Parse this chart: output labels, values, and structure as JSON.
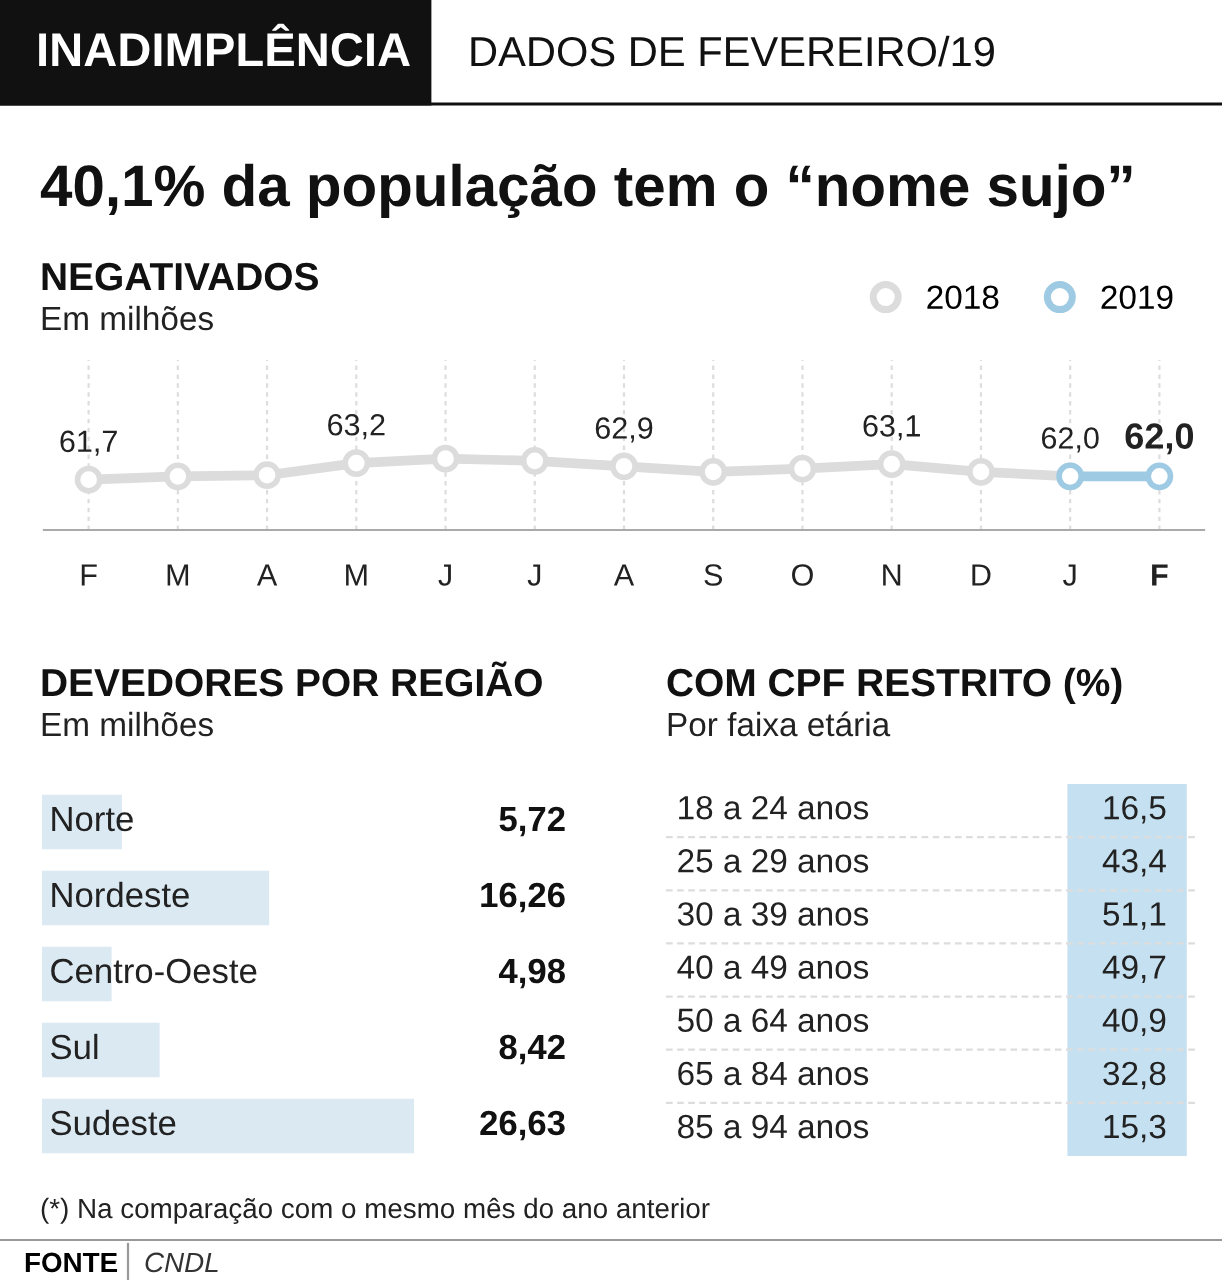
{
  "chart_data": [
    {
      "type": "other",
      "title": "40,1% da população tem o “nome sujo”",
      "annotations": [
        "INADIMPLÊNCIA",
        "DADOS DE FEVEREIRO/19"
      ]
    },
    {
      "type": "line",
      "title": "NEGATIVADOS",
      "subtitle": "Em milhões",
      "categories": [
        "F",
        "M",
        "A",
        "M",
        "J",
        "J",
        "A",
        "S",
        "O",
        "N",
        "D",
        "J",
        "F"
      ],
      "series": [
        {
          "name": "2018",
          "color": "#dcdcdc",
          "values": [
            61.7,
            62.0,
            62.1,
            63.2,
            63.6,
            63.4,
            62.9,
            62.4,
            62.7,
            63.1,
            62.4,
            62.0,
            null
          ],
          "value_labels": [
            "61,7",
            null,
            null,
            "63,2",
            null,
            null,
            "62,9",
            null,
            null,
            "63,1",
            null,
            null,
            null
          ]
        },
        {
          "name": "2019",
          "color": "#9ecbe3",
          "values": [
            null,
            null,
            null,
            null,
            null,
            null,
            null,
            null,
            null,
            null,
            null,
            62.0,
            62.0
          ],
          "value_labels": [
            null,
            null,
            null,
            null,
            null,
            null,
            null,
            null,
            null,
            null,
            null,
            "62,0",
            "62,0"
          ]
        }
      ],
      "marker": "circle",
      "grid": "x",
      "legend": "top right"
    },
    {
      "type": "bar",
      "orientation": "horizontal",
      "title": "DEVEDORES POR REGIÃO",
      "subtitle": "Em milhões",
      "categories": [
        "Norte",
        "Nordeste",
        "Centro-Oeste",
        "Sul",
        "Sudeste"
      ],
      "values": [
        5.72,
        16.26,
        4.98,
        8.42,
        26.63
      ],
      "value_labels": [
        "5,72",
        "16,26",
        "4,98",
        "8,42",
        "26,63"
      ],
      "color": "#dbe9f3"
    },
    {
      "type": "other",
      "title": "COM CPF RESTRITO (%)",
      "subtitle": "Por faixa etária",
      "categories": [
        "18 a 24 anos",
        "25 a 29 anos",
        "30 a 39 anos",
        "40 a 49 anos",
        "50 a 64 anos",
        "65 a 84 anos",
        "85 a 94 anos"
      ],
      "values": [
        16.5,
        43.4,
        51.1,
        49.7,
        40.9,
        32.8,
        15.3
      ],
      "value_labels": [
        "16,5",
        "43,4",
        "51,1",
        "49,7",
        "40,9",
        "32,8",
        "15,3"
      ],
      "color": "#c5e1f1"
    },
    {
      "type": "other",
      "annotations": [
        "(*) Na comparação com o mesmo mês do ano anterior",
        "FONTE",
        "CNDL"
      ]
    }
  ]
}
